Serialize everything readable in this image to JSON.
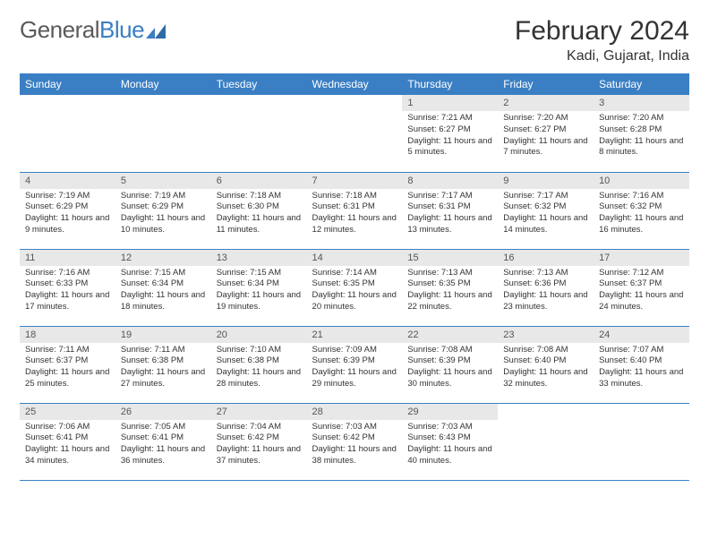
{
  "logo": {
    "text1": "General",
    "text2": "Blue"
  },
  "title": "February 2024",
  "location": "Kadi, Gujarat, India",
  "colors": {
    "header_bg": "#3a7fc4",
    "daynum_bg": "#e8e8e8",
    "border": "#3a7fc4"
  },
  "weekdays": [
    "Sunday",
    "Monday",
    "Tuesday",
    "Wednesday",
    "Thursday",
    "Friday",
    "Saturday"
  ],
  "grid": [
    [
      {
        "n": "",
        "lines": []
      },
      {
        "n": "",
        "lines": []
      },
      {
        "n": "",
        "lines": []
      },
      {
        "n": "",
        "lines": []
      },
      {
        "n": "1",
        "lines": [
          "Sunrise: 7:21 AM",
          "Sunset: 6:27 PM",
          "Daylight: 11 hours and 5 minutes."
        ]
      },
      {
        "n": "2",
        "lines": [
          "Sunrise: 7:20 AM",
          "Sunset: 6:27 PM",
          "Daylight: 11 hours and 7 minutes."
        ]
      },
      {
        "n": "3",
        "lines": [
          "Sunrise: 7:20 AM",
          "Sunset: 6:28 PM",
          "Daylight: 11 hours and 8 minutes."
        ]
      }
    ],
    [
      {
        "n": "4",
        "lines": [
          "Sunrise: 7:19 AM",
          "Sunset: 6:29 PM",
          "Daylight: 11 hours and 9 minutes."
        ]
      },
      {
        "n": "5",
        "lines": [
          "Sunrise: 7:19 AM",
          "Sunset: 6:29 PM",
          "Daylight: 11 hours and 10 minutes."
        ]
      },
      {
        "n": "6",
        "lines": [
          "Sunrise: 7:18 AM",
          "Sunset: 6:30 PM",
          "Daylight: 11 hours and 11 minutes."
        ]
      },
      {
        "n": "7",
        "lines": [
          "Sunrise: 7:18 AM",
          "Sunset: 6:31 PM",
          "Daylight: 11 hours and 12 minutes."
        ]
      },
      {
        "n": "8",
        "lines": [
          "Sunrise: 7:17 AM",
          "Sunset: 6:31 PM",
          "Daylight: 11 hours and 13 minutes."
        ]
      },
      {
        "n": "9",
        "lines": [
          "Sunrise: 7:17 AM",
          "Sunset: 6:32 PM",
          "Daylight: 11 hours and 14 minutes."
        ]
      },
      {
        "n": "10",
        "lines": [
          "Sunrise: 7:16 AM",
          "Sunset: 6:32 PM",
          "Daylight: 11 hours and 16 minutes."
        ]
      }
    ],
    [
      {
        "n": "11",
        "lines": [
          "Sunrise: 7:16 AM",
          "Sunset: 6:33 PM",
          "Daylight: 11 hours and 17 minutes."
        ]
      },
      {
        "n": "12",
        "lines": [
          "Sunrise: 7:15 AM",
          "Sunset: 6:34 PM",
          "Daylight: 11 hours and 18 minutes."
        ]
      },
      {
        "n": "13",
        "lines": [
          "Sunrise: 7:15 AM",
          "Sunset: 6:34 PM",
          "Daylight: 11 hours and 19 minutes."
        ]
      },
      {
        "n": "14",
        "lines": [
          "Sunrise: 7:14 AM",
          "Sunset: 6:35 PM",
          "Daylight: 11 hours and 20 minutes."
        ]
      },
      {
        "n": "15",
        "lines": [
          "Sunrise: 7:13 AM",
          "Sunset: 6:35 PM",
          "Daylight: 11 hours and 22 minutes."
        ]
      },
      {
        "n": "16",
        "lines": [
          "Sunrise: 7:13 AM",
          "Sunset: 6:36 PM",
          "Daylight: 11 hours and 23 minutes."
        ]
      },
      {
        "n": "17",
        "lines": [
          "Sunrise: 7:12 AM",
          "Sunset: 6:37 PM",
          "Daylight: 11 hours and 24 minutes."
        ]
      }
    ],
    [
      {
        "n": "18",
        "lines": [
          "Sunrise: 7:11 AM",
          "Sunset: 6:37 PM",
          "Daylight: 11 hours and 25 minutes."
        ]
      },
      {
        "n": "19",
        "lines": [
          "Sunrise: 7:11 AM",
          "Sunset: 6:38 PM",
          "Daylight: 11 hours and 27 minutes."
        ]
      },
      {
        "n": "20",
        "lines": [
          "Sunrise: 7:10 AM",
          "Sunset: 6:38 PM",
          "Daylight: 11 hours and 28 minutes."
        ]
      },
      {
        "n": "21",
        "lines": [
          "Sunrise: 7:09 AM",
          "Sunset: 6:39 PM",
          "Daylight: 11 hours and 29 minutes."
        ]
      },
      {
        "n": "22",
        "lines": [
          "Sunrise: 7:08 AM",
          "Sunset: 6:39 PM",
          "Daylight: 11 hours and 30 minutes."
        ]
      },
      {
        "n": "23",
        "lines": [
          "Sunrise: 7:08 AM",
          "Sunset: 6:40 PM",
          "Daylight: 11 hours and 32 minutes."
        ]
      },
      {
        "n": "24",
        "lines": [
          "Sunrise: 7:07 AM",
          "Sunset: 6:40 PM",
          "Daylight: 11 hours and 33 minutes."
        ]
      }
    ],
    [
      {
        "n": "25",
        "lines": [
          "Sunrise: 7:06 AM",
          "Sunset: 6:41 PM",
          "Daylight: 11 hours and 34 minutes."
        ]
      },
      {
        "n": "26",
        "lines": [
          "Sunrise: 7:05 AM",
          "Sunset: 6:41 PM",
          "Daylight: 11 hours and 36 minutes."
        ]
      },
      {
        "n": "27",
        "lines": [
          "Sunrise: 7:04 AM",
          "Sunset: 6:42 PM",
          "Daylight: 11 hours and 37 minutes."
        ]
      },
      {
        "n": "28",
        "lines": [
          "Sunrise: 7:03 AM",
          "Sunset: 6:42 PM",
          "Daylight: 11 hours and 38 minutes."
        ]
      },
      {
        "n": "29",
        "lines": [
          "Sunrise: 7:03 AM",
          "Sunset: 6:43 PM",
          "Daylight: 11 hours and 40 minutes."
        ]
      },
      {
        "n": "",
        "lines": []
      },
      {
        "n": "",
        "lines": []
      }
    ]
  ]
}
